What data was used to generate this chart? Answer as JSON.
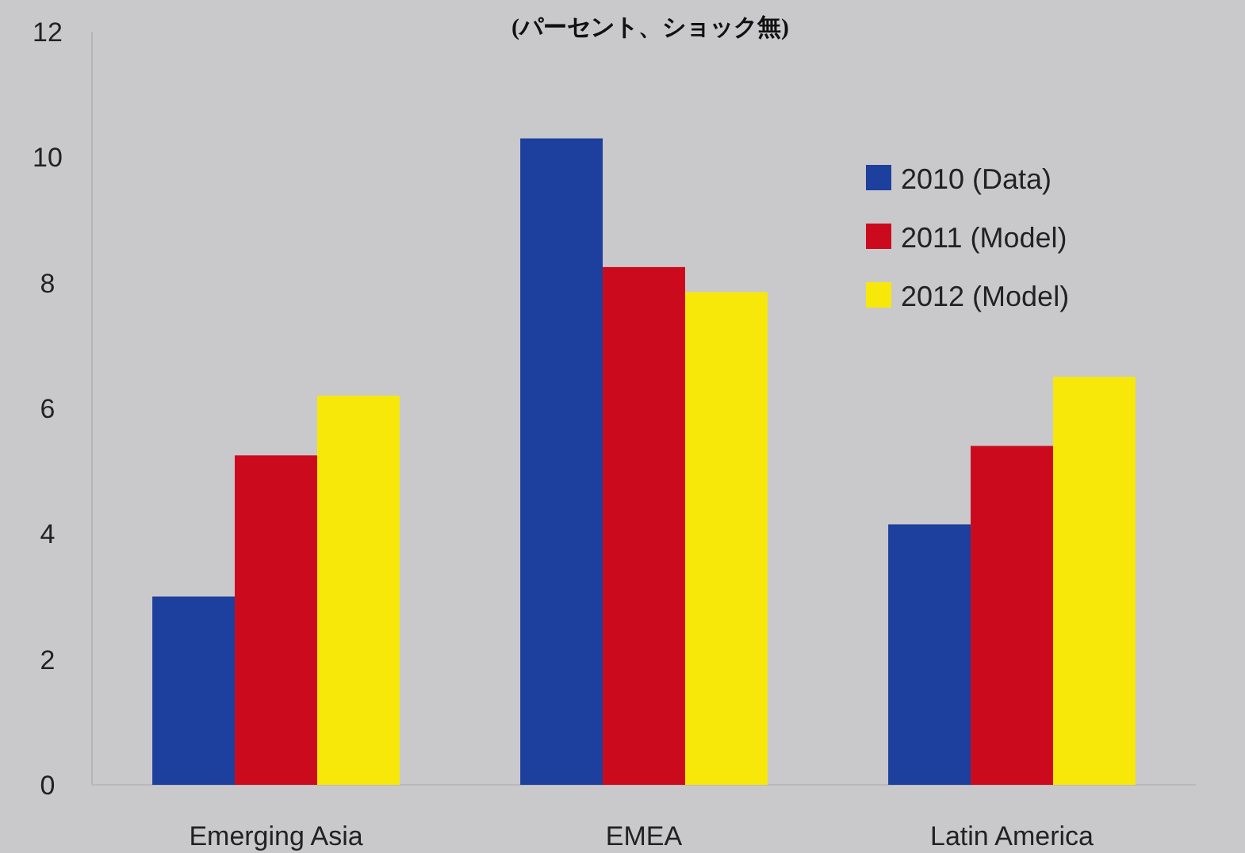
{
  "chart_data": {
    "type": "bar",
    "title": "(パーセント、ショック無)",
    "categories": [
      "Emerging Asia",
      "EMEA",
      "Latin America"
    ],
    "series": [
      {
        "name": "2010 (Data)",
        "color": "#1d3f9e",
        "values": [
          3.0,
          10.3,
          4.15
        ]
      },
      {
        "name": "2011 (Model)",
        "color": "#cc0a1e",
        "values": [
          5.25,
          8.25,
          5.4
        ]
      },
      {
        "name": "2012 (Model)",
        "color": "#f7e80a",
        "values": [
          6.2,
          7.85,
          6.5
        ]
      }
    ],
    "ylim": [
      0,
      12
    ],
    "yticks": [
      0,
      2,
      4,
      6,
      8,
      10,
      12
    ],
    "legend": "top right"
  }
}
